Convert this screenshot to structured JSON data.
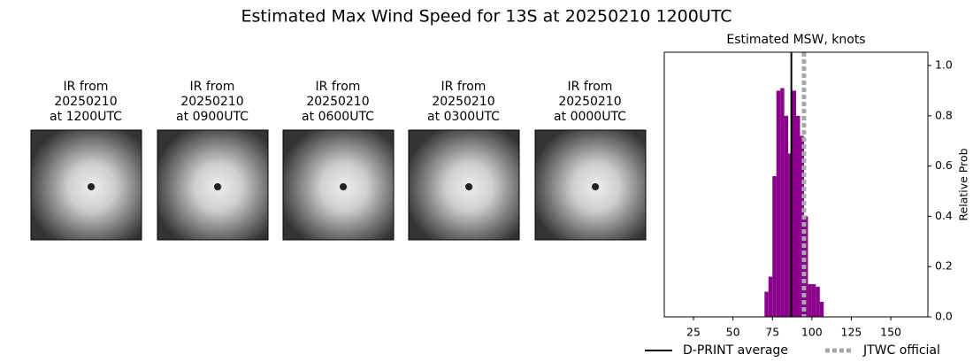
{
  "title": "Estimated Max Wind Speed for 13S at 20250210 1200UTC",
  "panels": [
    {
      "lines": [
        "IR from",
        "20250210",
        "at 1200UTC"
      ]
    },
    {
      "lines": [
        "IR from",
        "20250210",
        "at 0900UTC"
      ]
    },
    {
      "lines": [
        "IR from",
        "20250210",
        "at 0600UTC"
      ]
    },
    {
      "lines": [
        "IR from",
        "20250210",
        "at 0300UTC"
      ]
    },
    {
      "lines": [
        "IR from",
        "20250210",
        "at 0000UTC"
      ]
    }
  ],
  "chart_data": {
    "type": "histogram",
    "title": "Estimated MSW, knots",
    "ylabel": "Relative Prob",
    "bins": [
      70,
      72.5,
      75,
      77.5,
      80,
      82.5,
      85,
      87.5,
      90,
      92.5,
      95,
      97.5,
      100,
      102.5,
      105,
      107.5
    ],
    "counts": [
      0.1,
      0.16,
      0.56,
      0.9,
      0.91,
      0.8,
      0.65,
      0.9,
      0.8,
      0.72,
      0.4,
      0.13,
      0.13,
      0.12,
      0.06
    ],
    "color": "#8b008b",
    "xlim": [
      6.5,
      173.5
    ],
    "xticks": [
      25,
      50,
      75,
      100,
      125,
      150
    ],
    "ylim": [
      0,
      1.053
    ],
    "yticks": [
      {
        "value": 0,
        "label": "0.0"
      },
      {
        "value": 0.2,
        "label": "0.2"
      },
      {
        "value": 0.4,
        "label": "0.4"
      },
      {
        "value": 0.6,
        "label": "0.6"
      },
      {
        "value": 0.8,
        "label": "0.8"
      },
      {
        "value": 1,
        "label": "1.0"
      }
    ],
    "lines": [
      {
        "name": "D-PRINT average",
        "value": 87,
        "color": "#000000",
        "dashed": false
      },
      {
        "name": "JTWC official",
        "value": 95,
        "color": "#a9a9a9",
        "dashed": true
      }
    ]
  }
}
